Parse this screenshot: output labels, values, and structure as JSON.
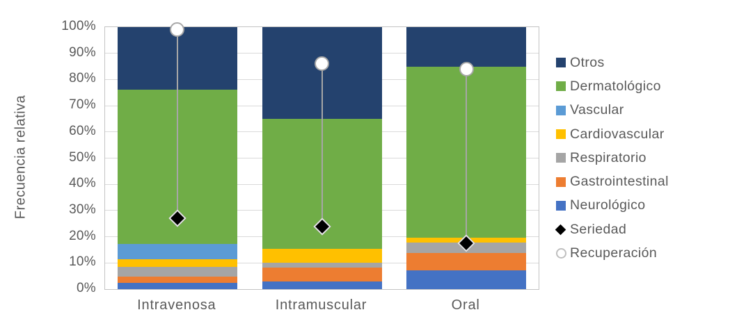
{
  "chart_data": {
    "type": "bar",
    "variant": "stacked-100-percent-with-point-overlay",
    "title": "",
    "xlabel": "",
    "ylabel": "Frecuencia relativa",
    "ylim": [
      0,
      100
    ],
    "y_tick_labels": [
      "0%",
      "10%",
      "20%",
      "30%",
      "40%",
      "50%",
      "60%",
      "70%",
      "80%",
      "90%",
      "100%"
    ],
    "grid": true,
    "legend_position": "right",
    "categories": [
      "Intravenosa",
      "Intramuscular",
      "Oral"
    ],
    "bar_series": [
      {
        "name": "Neurológico",
        "color": "#4472C4",
        "values": [
          2.3,
          2.8,
          7.2
        ]
      },
      {
        "name": "Gastrointestinal",
        "color": "#ED7D31",
        "values": [
          2.6,
          5.3,
          6.5
        ]
      },
      {
        "name": "Respiratorio",
        "color": "#A5A5A5",
        "values": [
          3.5,
          2.1,
          4.0
        ]
      },
      {
        "name": "Cardiovascular",
        "color": "#FFC000",
        "values": [
          3.1,
          5.3,
          1.9
        ]
      },
      {
        "name": "Vascular",
        "color": "#5B9BD5",
        "values": [
          5.7,
          0.0,
          0.0
        ]
      },
      {
        "name": "Dermatológico",
        "color": "#70AD47",
        "values": [
          59.0,
          49.5,
          65.4
        ]
      },
      {
        "name": "Otros",
        "color": "#24426E",
        "values": [
          23.8,
          35.0,
          15.0
        ]
      }
    ],
    "point_series": [
      {
        "name": "Seriedad",
        "marker": "diamond",
        "fill": "#000000",
        "stroke": "#E6E6E6",
        "values": [
          27,
          24,
          17.5
        ]
      },
      {
        "name": "Recuperación",
        "marker": "circle",
        "fill": "#FFFFFF",
        "stroke": "#A6A6A6",
        "values": [
          99,
          86,
          84
        ]
      }
    ],
    "legend_order": [
      "Otros",
      "Dermatológico",
      "Vascular",
      "Cardiovascular",
      "Respiratorio",
      "Gastrointestinal",
      "Neurológico",
      "Seriedad",
      "Recuperación"
    ],
    "style": {
      "grid_color": "#D9D9D9",
      "plot_border_color": "#C3C3C3",
      "text_color": "#595959",
      "connector_color": "#A6A6A6",
      "background": "#FFFFFF"
    }
  }
}
